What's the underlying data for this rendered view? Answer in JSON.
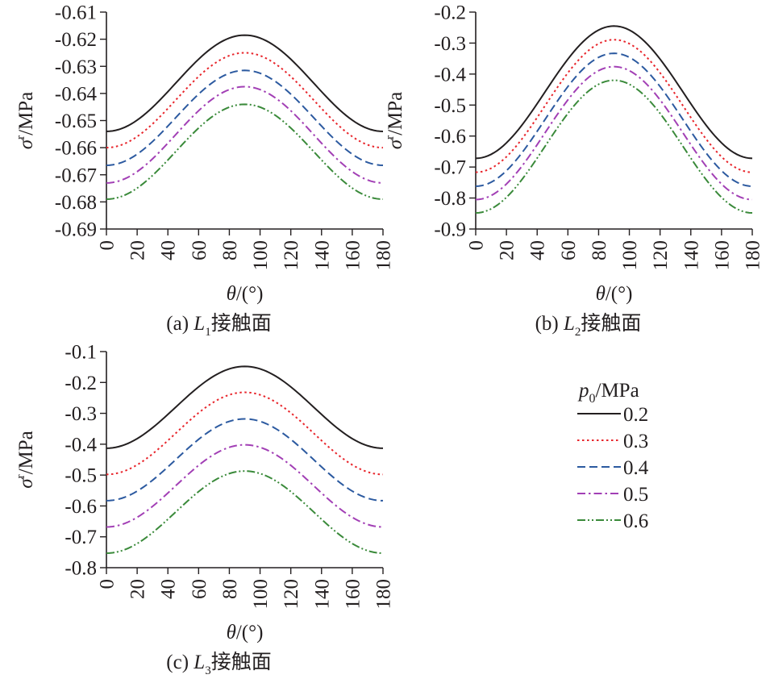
{
  "legend": {
    "title_symbol": "p",
    "title_subscript": "0",
    "title_unit": "/MPa",
    "entries": [
      "0.2",
      "0.3",
      "0.4",
      "0.5",
      "0.6"
    ]
  },
  "styles": [
    {
      "color": "#231f20",
      "dash": ""
    },
    {
      "color": "#e8262c",
      "dash": "2.5 3.5"
    },
    {
      "color": "#2c5aa0",
      "dash": "10 5"
    },
    {
      "color": "#a23fb5",
      "dash": "10 4 2.5 4"
    },
    {
      "color": "#3a8a3a",
      "dash": "10 3 2 3 2 3"
    }
  ],
  "chart_data": [
    {
      "type": "line",
      "caption": {
        "prefix": "(a) ",
        "symbol": "L",
        "subscript": "1",
        "suffix": "接触面"
      },
      "xlabel": {
        "symbol": "θ",
        "unit": "/(°)"
      },
      "ylabel": {
        "symbol": "σ",
        "superscript": "r",
        "unit": "/MPa"
      },
      "xlim": [
        0,
        180
      ],
      "ylim": [
        -0.69,
        -0.61
      ],
      "xticks": [
        0,
        20,
        40,
        60,
        80,
        100,
        120,
        140,
        160,
        180
      ],
      "yticks": [
        -0.61,
        -0.62,
        -0.63,
        -0.64,
        -0.65,
        -0.66,
        -0.67,
        -0.68,
        -0.69
      ],
      "ytick_labels": [
        "-0.61",
        "-0.62",
        "-0.63",
        "-0.64",
        "-0.65",
        "-0.66",
        "-0.67",
        "-0.68",
        "-0.69"
      ],
      "series_model": "y = min + (max - min) * sin²θ",
      "series": [
        {
          "name": "0.2",
          "min": -0.654,
          "max": -0.6185
        },
        {
          "name": "0.3",
          "min": -0.66,
          "max": -0.625
        },
        {
          "name": "0.4",
          "min": -0.6665,
          "max": -0.6315
        },
        {
          "name": "0.5",
          "min": -0.673,
          "max": -0.6375
        },
        {
          "name": "0.6",
          "min": -0.679,
          "max": -0.644
        }
      ]
    },
    {
      "type": "line",
      "caption": {
        "prefix": "(b) ",
        "symbol": "L",
        "subscript": "2",
        "suffix": "接触面"
      },
      "xlabel": {
        "symbol": "θ",
        "unit": "/(°)"
      },
      "ylabel": {
        "symbol": "σ",
        "superscript": "r",
        "unit": "/MPa"
      },
      "xlim": [
        0,
        180
      ],
      "ylim": [
        -0.9,
        -0.2
      ],
      "xticks": [
        0,
        20,
        40,
        60,
        80,
        100,
        120,
        140,
        160,
        180
      ],
      "yticks": [
        -0.2,
        -0.3,
        -0.4,
        -0.5,
        -0.6,
        -0.7,
        -0.8,
        -0.9
      ],
      "ytick_labels": [
        "-0.2",
        "-0.3",
        "-0.4",
        "-0.5",
        "-0.6",
        "-0.7",
        "-0.8",
        "-0.9"
      ],
      "series_model": "y = min + (max - min) * sin²θ",
      "series": [
        {
          "name": "0.2",
          "min": -0.672,
          "max": -0.245
        },
        {
          "name": "0.3",
          "min": -0.717,
          "max": -0.289
        },
        {
          "name": "0.4",
          "min": -0.762,
          "max": -0.333
        },
        {
          "name": "0.5",
          "min": -0.805,
          "max": -0.376
        },
        {
          "name": "0.6",
          "min": -0.848,
          "max": -0.42
        }
      ]
    },
    {
      "type": "line",
      "caption": {
        "prefix": "(c) ",
        "symbol": "L",
        "subscript": "3",
        "suffix": "接触面"
      },
      "xlabel": {
        "symbol": "θ",
        "unit": "/(°)"
      },
      "ylabel": {
        "symbol": "σ",
        "superscript": "r",
        "unit": "/MPa"
      },
      "xlim": [
        0,
        180
      ],
      "ylim": [
        -0.8,
        -0.1
      ],
      "xticks": [
        0,
        20,
        40,
        60,
        80,
        100,
        120,
        140,
        160,
        180
      ],
      "yticks": [
        -0.1,
        -0.2,
        -0.3,
        -0.4,
        -0.5,
        -0.6,
        -0.7,
        -0.8
      ],
      "ytick_labels": [
        "-0.1",
        "-0.2",
        "-0.3",
        "-0.4",
        "-0.5",
        "-0.6",
        "-0.7",
        "-0.8"
      ],
      "series_model": "y = min + (max - min) * sin²θ",
      "series": [
        {
          "name": "0.2",
          "min": -0.413,
          "max": -0.148
        },
        {
          "name": "0.3",
          "min": -0.498,
          "max": -0.232
        },
        {
          "name": "0.4",
          "min": -0.583,
          "max": -0.318
        },
        {
          "name": "0.5",
          "min": -0.668,
          "max": -0.402
        },
        {
          "name": "0.6",
          "min": -0.753,
          "max": -0.487
        }
      ]
    }
  ]
}
